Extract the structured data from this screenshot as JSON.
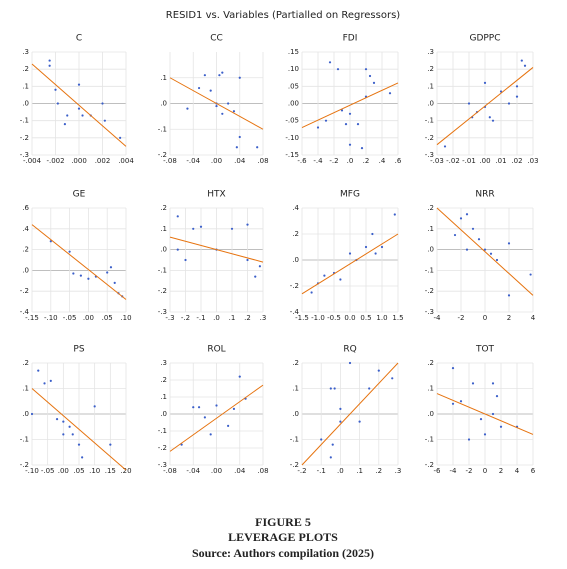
{
  "title": "RESID1 vs. Variables (Partialled on Regressors)",
  "caption": {
    "figure": "FIGURE 5",
    "subtitle": "LEVERAGE PLOTS",
    "source": "Source: Authors compilation (2025)"
  },
  "chart_data": [
    {
      "type": "scatter",
      "title": "C",
      "color": "#3b5fc9",
      "fit_color": "#e6730f",
      "grid": true,
      "x": [
        -0.0025,
        -0.0025,
        -0.002,
        -0.0018,
        -0.001,
        -0.0012,
        0.0,
        0.0,
        0.0003,
        0.001,
        0.002,
        0.0022,
        0.0035
      ],
      "y": [
        0.25,
        0.22,
        0.08,
        0.0,
        -0.07,
        -0.12,
        0.11,
        -0.03,
        -0.07,
        -0.07,
        0.0,
        -0.1,
        -0.2
      ],
      "fit": {
        "x": [
          -0.004,
          0.004
        ],
        "y": [
          0.23,
          -0.25
        ]
      },
      "xlim": [
        -0.004,
        0.004
      ],
      "ylim": [
        -0.3,
        0.3
      ],
      "xticks": [
        {
          "value": -0.004,
          "label": "-.004"
        },
        {
          "value": -0.002,
          "label": "-.002"
        },
        {
          "value": 0,
          "label": ".000"
        },
        {
          "value": 0.002,
          "label": ".002"
        },
        {
          "value": 0.004,
          "label": ".004"
        }
      ],
      "yticks": [
        {
          "value": -0.3,
          "label": "-.3"
        },
        {
          "value": -0.2,
          "label": "-.2"
        },
        {
          "value": -0.1,
          "label": "-.1"
        },
        {
          "value": 0,
          "label": ".0"
        },
        {
          "value": 0.1,
          "label": ".1"
        },
        {
          "value": 0.2,
          "label": ".2"
        },
        {
          "value": 0.3,
          "label": ".3"
        }
      ]
    },
    {
      "type": "scatter",
      "title": "CC",
      "color": "#3b5fc9",
      "fit_color": "#e6730f",
      "grid": true,
      "x": [
        -0.05,
        -0.03,
        -0.02,
        -0.01,
        0.0,
        0.0,
        0.005,
        0.01,
        0.01,
        0.02,
        0.03,
        0.04,
        0.04,
        0.07,
        0.035
      ],
      "y": [
        -0.02,
        0.06,
        0.11,
        0.05,
        0.0,
        -0.01,
        0.11,
        0.12,
        -0.04,
        0.0,
        -0.03,
        0.1,
        -0.13,
        -0.17,
        -0.17
      ],
      "fit": {
        "x": [
          -0.08,
          0.08
        ],
        "y": [
          0.1,
          -0.1
        ]
      },
      "xlim": [
        -0.08,
        0.08
      ],
      "ylim": [
        -0.2,
        0.2
      ],
      "xticks": [
        {
          "value": -0.08,
          "label": "-.08"
        },
        {
          "value": -0.04,
          "label": "-.04"
        },
        {
          "value": 0,
          "label": ".00"
        },
        {
          "value": 0.04,
          "label": ".04"
        },
        {
          "value": 0.08,
          "label": ".08"
        }
      ],
      "yticks": [
        {
          "value": -0.2,
          "label": "-.2"
        },
        {
          "value": -0.1,
          "label": "-.1"
        },
        {
          "value": 0,
          "label": ".0"
        },
        {
          "value": 0.1,
          "label": ".1"
        }
      ]
    },
    {
      "type": "scatter",
      "title": "FDI",
      "color": "#3b5fc9",
      "fit_color": "#e6730f",
      "grid": true,
      "x": [
        -0.4,
        -0.3,
        -0.25,
        -0.15,
        -0.1,
        -0.05,
        0.0,
        0.0,
        0.1,
        0.15,
        0.2,
        0.2,
        0.25,
        0.3,
        0.5
      ],
      "y": [
        -0.07,
        -0.05,
        0.12,
        0.1,
        -0.02,
        -0.06,
        -0.03,
        -0.12,
        -0.06,
        -0.13,
        0.1,
        0.02,
        0.08,
        0.06,
        0.03
      ],
      "fit": {
        "x": [
          -0.6,
          0.6
        ],
        "y": [
          -0.07,
          0.06
        ]
      },
      "xlim": [
        -0.6,
        0.6
      ],
      "ylim": [
        -0.15,
        0.15
      ],
      "xticks": [
        {
          "value": -0.6,
          "label": "-.6"
        },
        {
          "value": -0.4,
          "label": "-.4"
        },
        {
          "value": -0.2,
          "label": "-.2"
        },
        {
          "value": 0,
          "label": ".0"
        },
        {
          "value": 0.2,
          "label": ".2"
        },
        {
          "value": 0.4,
          "label": ".4"
        },
        {
          "value": 0.6,
          "label": ".6"
        }
      ],
      "yticks": [
        {
          "value": -0.15,
          "label": "-.15"
        },
        {
          "value": -0.1,
          "label": "-.10"
        },
        {
          "value": -0.05,
          "label": "-.05"
        },
        {
          "value": 0,
          "label": ".00"
        },
        {
          "value": 0.05,
          "label": ".05"
        },
        {
          "value": 0.1,
          "label": ".10"
        },
        {
          "value": 0.15,
          "label": ".15"
        }
      ]
    },
    {
      "type": "scatter",
      "title": "GDPPC",
      "color": "#3b5fc9",
      "fit_color": "#e6730f",
      "grid": true,
      "x": [
        -0.025,
        -0.01,
        -0.008,
        -0.005,
        0.0,
        0.0,
        0.003,
        0.005,
        0.01,
        0.015,
        0.02,
        0.023,
        0.025,
        0.02
      ],
      "y": [
        -0.25,
        0.0,
        -0.08,
        -0.05,
        0.12,
        -0.02,
        -0.08,
        -0.1,
        0.07,
        0.0,
        0.1,
        0.25,
        0.22,
        0.04
      ],
      "fit": {
        "x": [
          -0.03,
          0.03
        ],
        "y": [
          -0.24,
          0.21
        ]
      },
      "xlim": [
        -0.03,
        0.03
      ],
      "ylim": [
        -0.3,
        0.3
      ],
      "xticks": [
        {
          "value": -0.03,
          "label": "-.03"
        },
        {
          "value": -0.02,
          "label": "-.02"
        },
        {
          "value": -0.01,
          "label": "-.01"
        },
        {
          "value": 0,
          "label": ".00"
        },
        {
          "value": 0.01,
          "label": ".01"
        },
        {
          "value": 0.02,
          "label": ".02"
        },
        {
          "value": 0.03,
          "label": ".03"
        }
      ],
      "yticks": [
        {
          "value": -0.3,
          "label": "-.3"
        },
        {
          "value": -0.2,
          "label": "-.2"
        },
        {
          "value": -0.1,
          "label": "-.1"
        },
        {
          "value": 0,
          "label": ".0"
        },
        {
          "value": 0.1,
          "label": ".1"
        },
        {
          "value": 0.2,
          "label": ".2"
        },
        {
          "value": 0.3,
          "label": ".3"
        }
      ]
    },
    {
      "type": "scatter",
      "title": "GE",
      "color": "#3b5fc9",
      "fit_color": "#e6730f",
      "grid": true,
      "x": [
        -0.1,
        -0.05,
        -0.04,
        -0.02,
        0.0,
        0.02,
        0.05,
        0.06,
        0.07,
        0.08,
        0.09
      ],
      "y": [
        0.28,
        0.18,
        -0.03,
        -0.05,
        -0.08,
        -0.06,
        -0.02,
        0.03,
        -0.12,
        -0.22,
        -0.25
      ],
      "fit": {
        "x": [
          -0.15,
          0.1
        ],
        "y": [
          0.44,
          -0.28
        ]
      },
      "xlim": [
        -0.15,
        0.1
      ],
      "ylim": [
        -0.4,
        0.6
      ],
      "xticks": [
        {
          "value": -0.15,
          "label": "-.15"
        },
        {
          "value": -0.1,
          "label": "-.10"
        },
        {
          "value": -0.05,
          "label": "-.05"
        },
        {
          "value": 0,
          "label": ".00"
        },
        {
          "value": 0.05,
          "label": ".05"
        },
        {
          "value": 0.1,
          "label": ".10"
        }
      ],
      "yticks": [
        {
          "value": -0.4,
          "label": "-.4"
        },
        {
          "value": -0.2,
          "label": "-.2"
        },
        {
          "value": 0,
          "label": ".0"
        },
        {
          "value": 0.2,
          "label": ".2"
        },
        {
          "value": 0.4,
          "label": ".4"
        },
        {
          "value": 0.6,
          "label": ".6"
        }
      ]
    },
    {
      "type": "scatter",
      "title": "HTX",
      "color": "#3b5fc9",
      "fit_color": "#e6730f",
      "grid": true,
      "x": [
        -0.25,
        -0.25,
        -0.2,
        -0.15,
        -0.1,
        0.0,
        0.1,
        0.2,
        0.2,
        0.25,
        0.28
      ],
      "y": [
        0.16,
        0.0,
        -0.05,
        0.1,
        0.11,
        0.0,
        0.1,
        -0.05,
        0.12,
        -0.13,
        -0.08
      ],
      "fit": {
        "x": [
          -0.3,
          0.3
        ],
        "y": [
          0.06,
          -0.06
        ]
      },
      "xlim": [
        -0.3,
        0.3
      ],
      "ylim": [
        -0.3,
        0.2
      ],
      "xticks": [
        {
          "value": -0.3,
          "label": "-.3"
        },
        {
          "value": -0.2,
          "label": "-.2"
        },
        {
          "value": -0.1,
          "label": "-.1"
        },
        {
          "value": 0,
          "label": ".0"
        },
        {
          "value": 0.1,
          "label": ".1"
        },
        {
          "value": 0.2,
          "label": ".2"
        },
        {
          "value": 0.3,
          "label": ".3"
        }
      ],
      "yticks": [
        {
          "value": -0.3,
          "label": "-.3"
        },
        {
          "value": -0.2,
          "label": "-.2"
        },
        {
          "value": -0.1,
          "label": "-.1"
        },
        {
          "value": 0,
          "label": ".0"
        },
        {
          "value": 0.1,
          "label": ".1"
        },
        {
          "value": 0.2,
          "label": ".2"
        }
      ]
    },
    {
      "type": "scatter",
      "title": "MFG",
      "color": "#3b5fc9",
      "fit_color": "#e6730f",
      "grid": true,
      "x": [
        -1.2,
        -1.0,
        -0.8,
        -0.5,
        -0.3,
        0.0,
        0.2,
        0.5,
        0.7,
        0.8,
        1.0,
        1.4
      ],
      "y": [
        -0.25,
        -0.18,
        -0.12,
        -0.1,
        -0.15,
        0.05,
        0.0,
        0.1,
        0.2,
        0.05,
        0.1,
        0.35
      ],
      "fit": {
        "x": [
          -1.5,
          1.5
        ],
        "y": [
          -0.26,
          0.2
        ]
      },
      "xlim": [
        -1.5,
        1.5
      ],
      "ylim": [
        -0.4,
        0.4
      ],
      "xticks": [
        -1.5,
        {
          "value": -1,
          "label": "-1.0"
        },
        -0.5,
        {
          "value": 0,
          "label": "0.0"
        },
        0.5,
        {
          "value": 1,
          "label": "1.0"
        },
        1.5
      ],
      "yticks": [
        {
          "value": -0.4,
          "label": "-.4"
        },
        {
          "value": -0.2,
          "label": "-.2"
        },
        {
          "value": 0,
          "label": ".0"
        },
        {
          "value": 0.2,
          "label": ".2"
        },
        {
          "value": 0.4,
          "label": ".4"
        }
      ]
    },
    {
      "type": "scatter",
      "title": "NRR",
      "color": "#3b5fc9",
      "fit_color": "#e6730f",
      "grid": true,
      "x": [
        -2.5,
        -2,
        -1.5,
        -1.5,
        -1,
        -0.5,
        0,
        0.5,
        1,
        2,
        2,
        3.8
      ],
      "y": [
        0.07,
        0.15,
        0.17,
        0.0,
        0.1,
        0.05,
        0.0,
        -0.02,
        -0.05,
        0.03,
        -0.22,
        -0.12
      ],
      "fit": {
        "x": [
          -4,
          4
        ],
        "y": [
          0.2,
          -0.22
        ]
      },
      "xlim": [
        -4,
        4
      ],
      "ylim": [
        -0.3,
        0.2
      ],
      "xticks": [
        -4,
        -2,
        0,
        2,
        4
      ],
      "yticks": [
        {
          "value": -0.3,
          "label": "-.3"
        },
        {
          "value": -0.2,
          "label": "-.2"
        },
        {
          "value": -0.1,
          "label": "-.1"
        },
        {
          "value": 0,
          "label": ".0"
        },
        {
          "value": 0.1,
          "label": ".1"
        },
        {
          "value": 0.2,
          "label": ".2"
        }
      ]
    },
    {
      "type": "scatter",
      "title": "PS",
      "color": "#3b5fc9",
      "fit_color": "#e6730f",
      "grid": true,
      "x": [
        -0.08,
        -0.06,
        -0.04,
        -0.02,
        0.0,
        0.0,
        0.02,
        0.03,
        0.05,
        0.06,
        0.1,
        0.15,
        -0.1
      ],
      "y": [
        0.17,
        0.12,
        0.13,
        -0.02,
        -0.03,
        -0.08,
        -0.05,
        -0.08,
        -0.12,
        -0.17,
        0.03,
        -0.12,
        0.0
      ],
      "fit": {
        "x": [
          -0.1,
          0.2
        ],
        "y": [
          0.1,
          -0.22
        ]
      },
      "xlim": [
        -0.1,
        0.2
      ],
      "ylim": [
        -0.2,
        0.2
      ],
      "xticks": [
        {
          "value": -0.1,
          "label": "-.10"
        },
        {
          "value": -0.05,
          "label": "-.05"
        },
        {
          "value": 0,
          "label": ".00"
        },
        {
          "value": 0.05,
          "label": ".05"
        },
        {
          "value": 0.1,
          "label": ".10"
        },
        {
          "value": 0.15,
          "label": ".15"
        },
        {
          "value": 0.2,
          "label": ".20"
        }
      ],
      "yticks": [
        {
          "value": -0.2,
          "label": "-.2"
        },
        {
          "value": -0.1,
          "label": "-.1"
        },
        {
          "value": 0,
          "label": ".0"
        },
        {
          "value": 0.1,
          "label": ".1"
        },
        {
          "value": 0.2,
          "label": ".2"
        }
      ]
    },
    {
      "type": "scatter",
      "title": "ROL",
      "color": "#3b5fc9",
      "fit_color": "#e6730f",
      "grid": true,
      "x": [
        -0.06,
        -0.04,
        -0.03,
        -0.02,
        -0.01,
        0.0,
        0.02,
        0.03,
        0.04,
        0.05
      ],
      "y": [
        -0.18,
        0.04,
        0.04,
        -0.02,
        -0.12,
        0.05,
        -0.07,
        0.03,
        0.22,
        0.09
      ],
      "fit": {
        "x": [
          -0.08,
          0.08
        ],
        "y": [
          -0.22,
          0.17
        ]
      },
      "xlim": [
        -0.08,
        0.08
      ],
      "ylim": [
        -0.3,
        0.3
      ],
      "xticks": [
        {
          "value": -0.08,
          "label": "-.08"
        },
        {
          "value": -0.04,
          "label": "-.04"
        },
        {
          "value": 0,
          "label": ".00"
        },
        {
          "value": 0.04,
          "label": ".04"
        },
        {
          "value": 0.08,
          "label": ".08"
        }
      ],
      "yticks": [
        {
          "value": -0.3,
          "label": "-.3"
        },
        {
          "value": -0.2,
          "label": "-.2"
        },
        {
          "value": -0.1,
          "label": "-.1"
        },
        {
          "value": 0,
          "label": ".0"
        },
        {
          "value": 0.1,
          "label": ".1"
        },
        {
          "value": 0.2,
          "label": ".2"
        },
        {
          "value": 0.3,
          "label": ".3"
        }
      ]
    },
    {
      "type": "scatter",
      "title": "RQ",
      "color": "#3b5fc9",
      "fit_color": "#e6730f",
      "grid": true,
      "x": [
        -0.1,
        -0.05,
        -0.05,
        -0.04,
        -0.03,
        0.0,
        0.0,
        0.05,
        0.1,
        0.15,
        0.2,
        0.27
      ],
      "y": [
        -0.1,
        0.1,
        -0.17,
        -0.12,
        0.1,
        0.02,
        -0.03,
        0.2,
        -0.03,
        0.1,
        0.17,
        0.14
      ],
      "fit": {
        "x": [
          -0.2,
          0.3
        ],
        "y": [
          -0.2,
          0.2
        ]
      },
      "xlim": [
        -0.2,
        0.3
      ],
      "ylim": [
        -0.2,
        0.2
      ],
      "xticks": [
        {
          "value": -0.2,
          "label": "-.2"
        },
        {
          "value": -0.1,
          "label": "-.1"
        },
        {
          "value": 0,
          "label": ".0"
        },
        {
          "value": 0.1,
          "label": ".1"
        },
        {
          "value": 0.2,
          "label": ".2"
        },
        {
          "value": 0.3,
          "label": ".3"
        }
      ],
      "yticks": [
        {
          "value": -0.2,
          "label": "-.2"
        },
        {
          "value": -0.1,
          "label": "-.1"
        },
        {
          "value": 0,
          "label": ".0"
        },
        {
          "value": 0.1,
          "label": ".1"
        },
        {
          "value": 0.2,
          "label": ".2"
        }
      ]
    },
    {
      "type": "scatter",
      "title": "TOT",
      "color": "#3b5fc9",
      "fit_color": "#e6730f",
      "grid": true,
      "x": [
        -4,
        -3,
        -2,
        -1.5,
        -0.5,
        0,
        1,
        1,
        1.5,
        2,
        4,
        -4
      ],
      "y": [
        0.18,
        0.05,
        -0.1,
        0.12,
        -0.02,
        -0.08,
        0.0,
        0.12,
        0.07,
        -0.05,
        -0.05,
        0.04
      ],
      "fit": {
        "x": [
          -6,
          6
        ],
        "y": [
          0.08,
          -0.08
        ]
      },
      "xlim": [
        -6,
        6
      ],
      "ylim": [
        -0.2,
        0.2
      ],
      "xticks": [
        -6,
        -4,
        -2,
        0,
        2,
        4,
        6
      ],
      "yticks": [
        {
          "value": -0.2,
          "label": "-.2"
        },
        {
          "value": -0.1,
          "label": "-.1"
        },
        {
          "value": 0,
          "label": ".0"
        },
        {
          "value": 0.1,
          "label": ".1"
        },
        {
          "value": 0.2,
          "label": ".2"
        }
      ]
    }
  ]
}
